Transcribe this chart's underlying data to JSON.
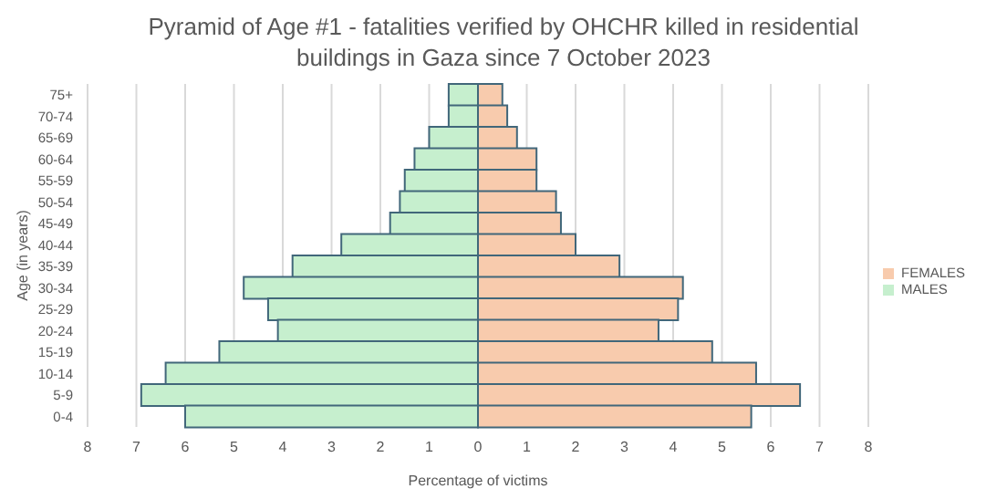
{
  "chart_data": {
    "type": "bar",
    "orientation": "horizontal",
    "stacked": true,
    "title": "Pyramid of Age #1 - fatalities verified by OHCHR killed in residential buildings in Gaza since 7 October 2023",
    "xlabel": "Percentage of victims",
    "ylabel": "Age (in years)",
    "categories": [
      "75+",
      "70-74",
      "65-69",
      "60-64",
      "55-59",
      "50-54",
      "45-49",
      "40-44",
      "35-39",
      "30-34",
      "25-29",
      "20-24",
      "15-19",
      "10-14",
      "5-9",
      "0-4"
    ],
    "series": [
      {
        "name": "FEMALES",
        "color": "#f8cbad",
        "values": [
          0.5,
          0.6,
          0.8,
          1.2,
          1.2,
          1.6,
          1.7,
          2.0,
          2.9,
          4.2,
          4.1,
          3.7,
          4.8,
          5.7,
          6.6,
          5.6
        ]
      },
      {
        "name": "MALES",
        "color": "#c6efce",
        "values": [
          -0.6,
          -0.6,
          -1.0,
          -1.3,
          -1.5,
          -1.6,
          -1.8,
          -2.8,
          -3.8,
          -4.8,
          -4.3,
          -4.1,
          -5.3,
          -6.4,
          -6.9,
          -6.0
        ]
      }
    ],
    "xlim": [
      -8,
      8
    ],
    "xticks": [
      {
        "value": -8,
        "label": "8"
      },
      {
        "value": -7,
        "label": "7"
      },
      {
        "value": -6,
        "label": "6"
      },
      {
        "value": -5,
        "label": "5"
      },
      {
        "value": -4,
        "label": "4"
      },
      {
        "value": -3,
        "label": "3"
      },
      {
        "value": -2,
        "label": "2"
      },
      {
        "value": -1,
        "label": "1"
      },
      0,
      1,
      2,
      3,
      4,
      5,
      6,
      7,
      8
    ],
    "grid": "x",
    "legend": "right"
  }
}
